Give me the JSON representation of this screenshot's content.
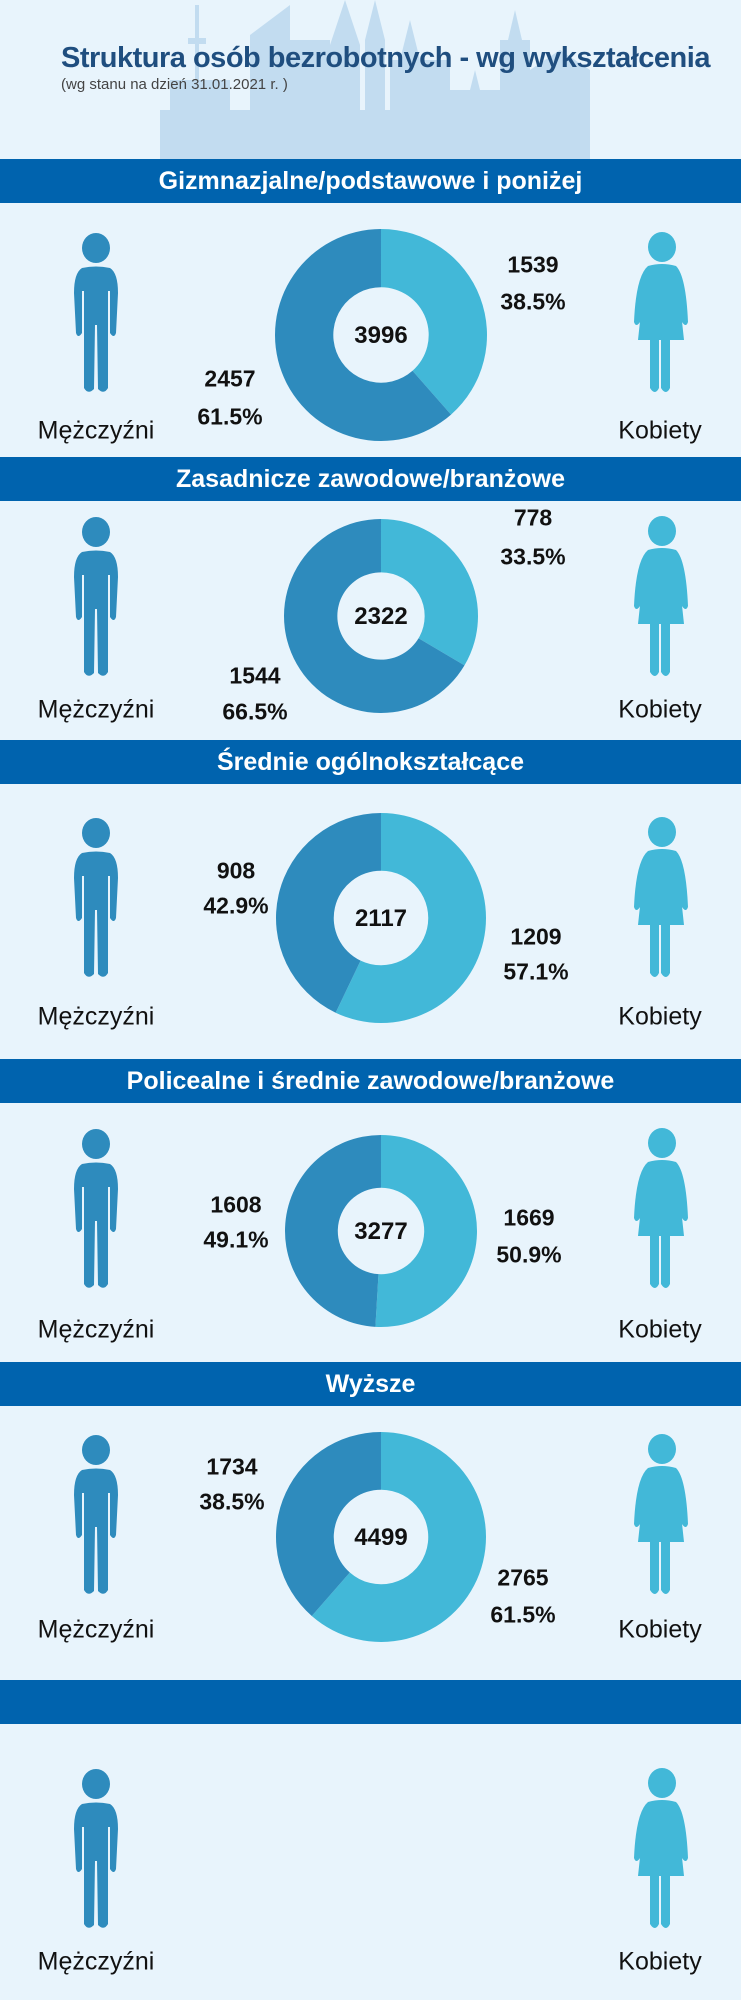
{
  "header": {
    "title": "Struktura osób bezrobotnych - wg wykształcenia",
    "subtitle": "(wg stanu na dzień 31.01.2021 r. )"
  },
  "colors": {
    "men": "#2e8bbd",
    "women": "#42b8d8",
    "band": "#0063ae",
    "background": "#e8f4fc"
  },
  "labels": {
    "men": "Mężczyźni",
    "women": "Kobiety"
  },
  "chart_data": [
    {
      "type": "pie",
      "title": "Gizmnazjalne/podstawowe i poniżej",
      "total": "3996",
      "series": [
        {
          "name": "Mężczyźni",
          "value": 2457,
          "value_label": "2457",
          "percent": "61.5%"
        },
        {
          "name": "Kobiety",
          "value": 1539,
          "value_label": "1539",
          "percent": "38.5%"
        }
      ]
    },
    {
      "type": "pie",
      "title": "Zasadnicze zawodowe/branżowe",
      "total": "2322",
      "series": [
        {
          "name": "Mężczyźni",
          "value": 1544,
          "value_label": "1544",
          "percent": "66.5%"
        },
        {
          "name": "Kobiety",
          "value": 778,
          "value_label": "778",
          "percent": "33.5%"
        }
      ]
    },
    {
      "type": "pie",
      "title": "Średnie ogólnokształcące",
      "total": "2117",
      "series": [
        {
          "name": "Mężczyźni",
          "value": 908,
          "value_label": "908",
          "percent": "42.9%"
        },
        {
          "name": "Kobiety",
          "value": 1209,
          "value_label": "1209",
          "percent": "57.1%"
        }
      ]
    },
    {
      "type": "pie",
      "title": "Policealne i średnie zawodowe/branżowe",
      "total": "3277",
      "series": [
        {
          "name": "Mężczyźni",
          "value": 1608,
          "value_label": "1608",
          "percent": "49.1%"
        },
        {
          "name": "Kobiety",
          "value": 1669,
          "value_label": "1669",
          "percent": "50.9%"
        }
      ]
    },
    {
      "type": "pie",
      "title": "Wyższe",
      "total": "4499",
      "series": [
        {
          "name": "Mężczyźni",
          "value": 1734,
          "value_label": "1734",
          "percent": "38.5%"
        },
        {
          "name": "Kobiety",
          "value": 2765,
          "value_label": "2765",
          "percent": "61.5%"
        }
      ]
    }
  ]
}
